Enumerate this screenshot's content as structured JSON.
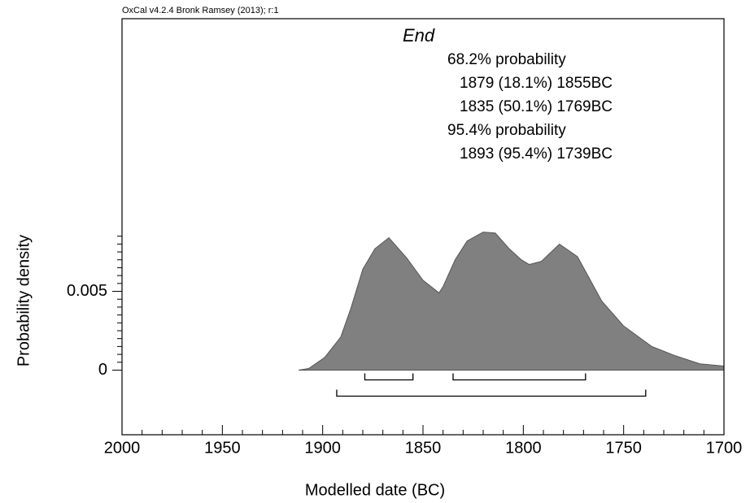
{
  "chart_data": {
    "type": "area",
    "header": "OxCal v4.2.4 Bronk Ramsey (2013); r:1",
    "title": "End",
    "annotations": [
      "68.2% probability",
      "1879 (18.1%) 1855BC",
      "1835 (50.1%) 1769BC",
      "95.4% probability",
      "1893 (95.4%) 1739BC"
    ],
    "xlabel": "Modelled date (BC)",
    "ylabel": "Probability density",
    "x": [
      1912,
      1907,
      1899,
      1891,
      1886,
      1880,
      1874,
      1867,
      1858,
      1850,
      1844,
      1842,
      1840,
      1834,
      1828,
      1820,
      1814,
      1807,
      1801,
      1797,
      1791,
      1782,
      1773,
      1761,
      1750,
      1736,
      1724,
      1712,
      1700
    ],
    "values": [
      0,
      0.0001,
      0.0008,
      0.0021,
      0.0039,
      0.0064,
      0.0077,
      0.0084,
      0.0071,
      0.0057,
      0.0051,
      0.0049,
      0.0053,
      0.007,
      0.0082,
      0.00876,
      0.0087,
      0.0077,
      0.007,
      0.0067,
      0.0069,
      0.008,
      0.0072,
      0.0044,
      0.0028,
      0.0015,
      0.0009,
      0.0004,
      0.00026
    ],
    "color": "#808080",
    "ranges": [
      {
        "values": [
          1879,
          1855
        ],
        "level": 1
      },
      {
        "values": [
          1835,
          1769
        ],
        "level": 1
      },
      {
        "values": [
          1893,
          1739
        ],
        "level": 2
      }
    ],
    "xlim": [
      2000,
      1700
    ],
    "xticks": [
      2000,
      1950,
      1900,
      1850,
      1800,
      1750,
      1700
    ],
    "xminorticks": [
      1990,
      1980,
      1970,
      1960,
      1940,
      1930,
      1920,
      1910,
      1890,
      1880,
      1870,
      1860,
      1840,
      1830,
      1820,
      1810,
      1790,
      1780,
      1770,
      1760,
      1740,
      1730,
      1720,
      1710
    ],
    "ylim": [
      -0.0041,
      0.0223
    ],
    "yticks": [
      0,
      0.005
    ],
    "yminorticks": [
      0.0005,
      0.001,
      0.0015,
      0.002,
      0.0025,
      0.003,
      0.0035,
      0.004,
      0.0045,
      0.0055,
      0.006,
      0.0065,
      0.007,
      0.0075,
      0.008,
      0.0085
    ]
  }
}
